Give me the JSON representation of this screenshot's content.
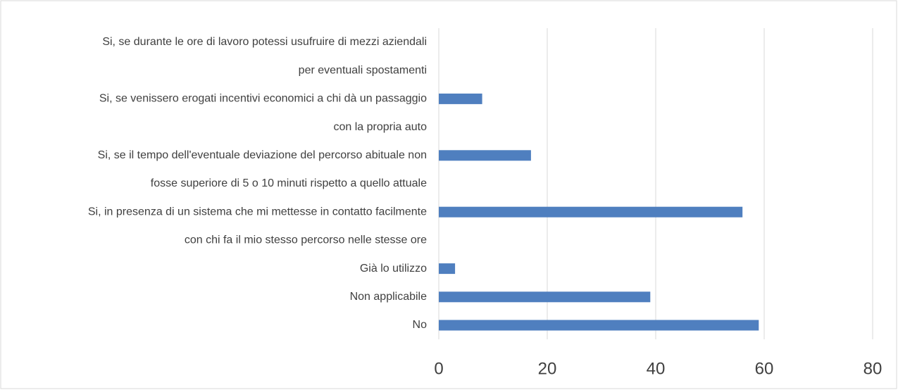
{
  "chart_data": {
    "type": "hbar",
    "categories": [
      "Si, se durante le ore di lavoro potessi usufruire di mezzi aziendali ",
      "per eventuali spostamenti",
      "Si, se venissero erogati incentivi economici a chi dà un passaggio",
      "con la propria auto",
      "Si, se il tempo dell'eventuale deviazione del percorso abituale non ",
      "fosse superiore di 5 o 10 minuti rispetto a quello attuale",
      "Si, in presenza di un sistema che mi mettesse in contatto facilmente ",
      "con chi fa il mio stesso percorso nelle stesse ore",
      "Già lo utilizzo",
      "Non applicabile",
      "No"
    ],
    "values": [
      0,
      null,
      8,
      null,
      17,
      null,
      56,
      null,
      3,
      39,
      59
    ],
    "color": "#4f7fbf",
    "xlim": [
      0,
      80
    ],
    "xticks": [
      0,
      20,
      40,
      60,
      80
    ],
    "grid": true
  }
}
